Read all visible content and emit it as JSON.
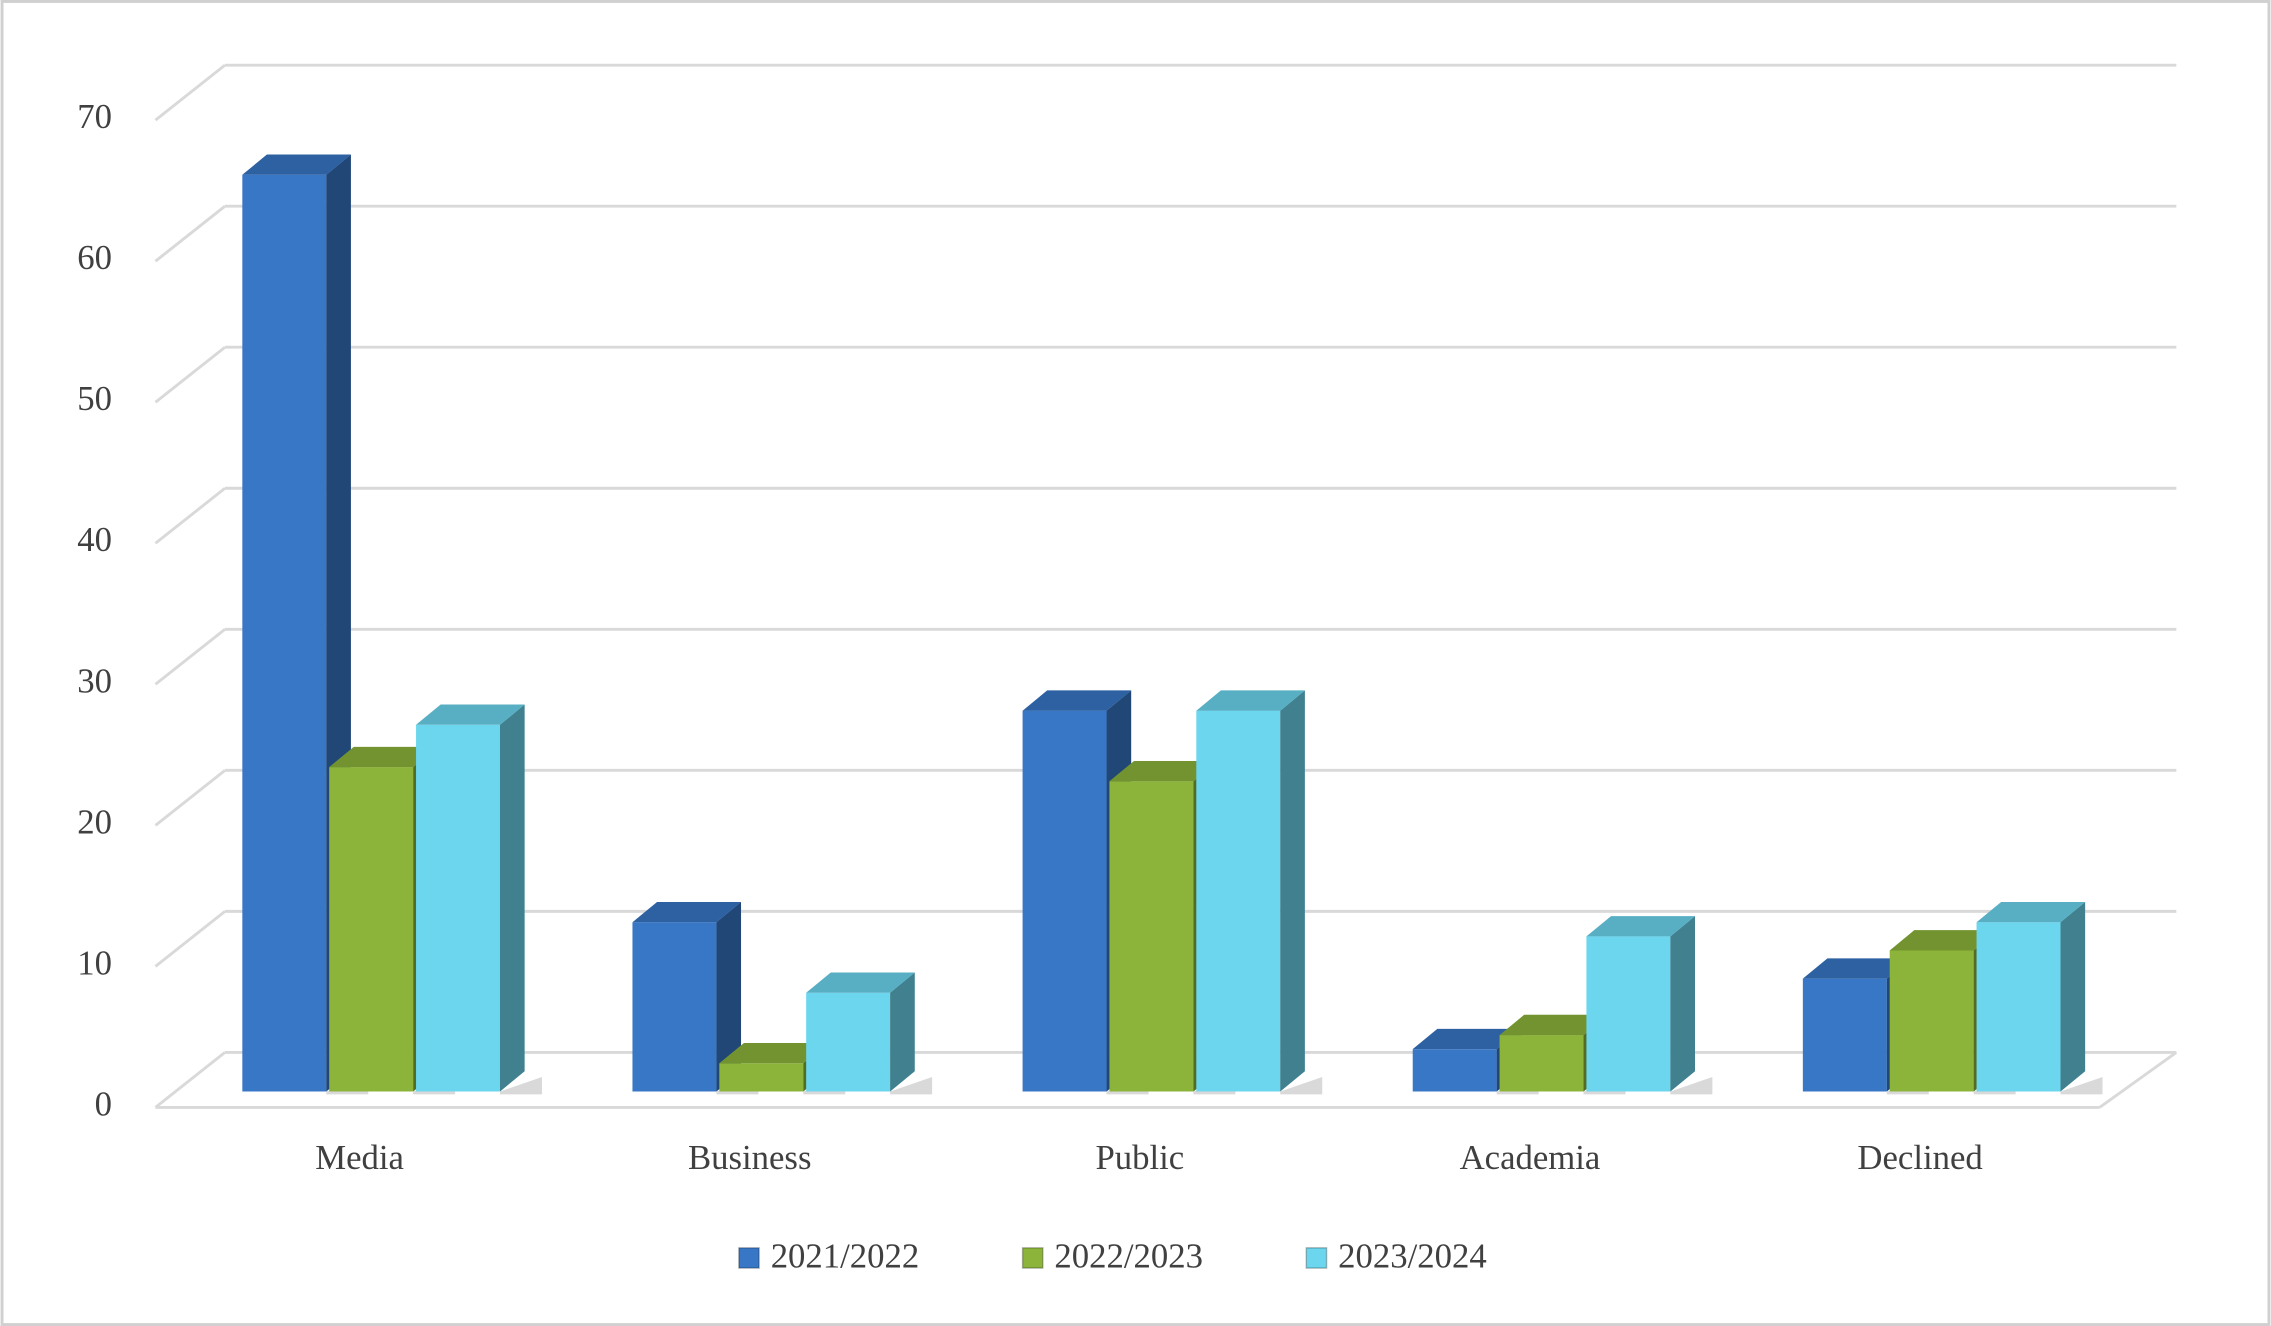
{
  "chart_data": {
    "type": "bar3d",
    "categories": [
      "Media",
      "Business",
      "Public",
      "Academia",
      "Declined"
    ],
    "series": [
      {
        "name": "2021/2022",
        "color": "#3877c6",
        "values": [
          65,
          12,
          27,
          3,
          8
        ]
      },
      {
        "name": "2022/2023",
        "color": "#8cb43a",
        "values": [
          23,
          2,
          22,
          4,
          10
        ]
      },
      {
        "name": "2023/2024",
        "color": "#6cd6ee",
        "values": [
          26,
          7,
          27,
          11,
          12
        ]
      }
    ],
    "ylim": [
      0,
      70
    ],
    "yticks": [
      0,
      10,
      20,
      30,
      40,
      50,
      60,
      70
    ],
    "grid": true,
    "legend": "bottom"
  }
}
